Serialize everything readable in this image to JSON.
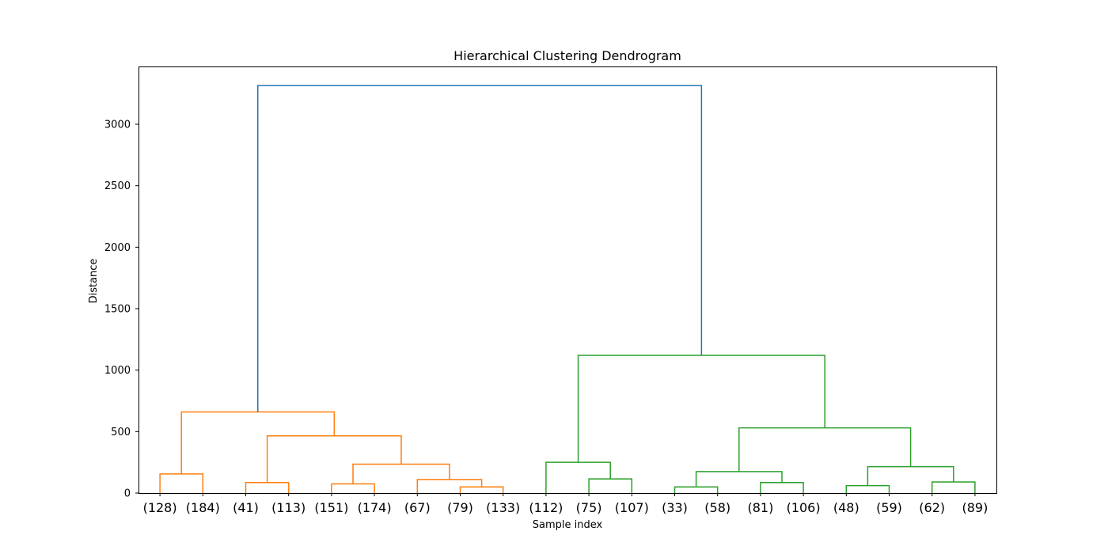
{
  "chart_data": {
    "type": "dendrogram",
    "title": "Hierarchical Clustering Dendrogram",
    "xlabel": "Sample index",
    "ylabel": "Distance",
    "ylim": [
      0,
      3470
    ],
    "yticks": [
      0,
      500,
      1000,
      1500,
      2000,
      2500,
      3000
    ],
    "grid": false,
    "leaves": [
      "(128)",
      "(184)",
      "(41)",
      "(113)",
      "(151)",
      "(174)",
      "(67)",
      "(79)",
      "(133)",
      "(112)",
      "(75)",
      "(107)",
      "(33)",
      "(58)",
      "(81)",
      "(106)",
      "(48)",
      "(59)",
      "(62)",
      "(89)"
    ],
    "colors": {
      "above_threshold": "#1f77b4",
      "cluster_1": "#ff7f0e",
      "cluster_2": "#2ca02c"
    },
    "links": [
      {
        "left": 0,
        "right": 1,
        "height": 155,
        "color": "cluster_1"
      },
      {
        "left": 2,
        "right": 3,
        "height": 85,
        "color": "cluster_1"
      },
      {
        "left": 4,
        "right": 5,
        "height": 75,
        "color": "cluster_1"
      },
      {
        "left": 7,
        "right": 8,
        "height": 50,
        "color": "cluster_1"
      },
      {
        "left": 6,
        "right": 23,
        "height": 110,
        "color": "cluster_1"
      },
      {
        "left": 22,
        "right": 24,
        "height": 235,
        "color": "cluster_1"
      },
      {
        "left": 21,
        "right": 25,
        "height": 465,
        "color": "cluster_1"
      },
      {
        "left": 20,
        "right": 26,
        "height": 660,
        "color": "cluster_1"
      },
      {
        "left": 10,
        "right": 11,
        "height": 115,
        "color": "cluster_2"
      },
      {
        "left": 9,
        "right": 28,
        "height": 250,
        "color": "cluster_2"
      },
      {
        "left": 12,
        "right": 13,
        "height": 50,
        "color": "cluster_2"
      },
      {
        "left": 14,
        "right": 15,
        "height": 85,
        "color": "cluster_2"
      },
      {
        "left": 30,
        "right": 31,
        "height": 175,
        "color": "cluster_2"
      },
      {
        "left": 16,
        "right": 17,
        "height": 60,
        "color": "cluster_2"
      },
      {
        "left": 18,
        "right": 19,
        "height": 90,
        "color": "cluster_2"
      },
      {
        "left": 33,
        "right": 34,
        "height": 215,
        "color": "cluster_2"
      },
      {
        "left": 32,
        "right": 35,
        "height": 530,
        "color": "cluster_2"
      },
      {
        "left": 29,
        "right": 36,
        "height": 1120,
        "color": "cluster_2"
      },
      {
        "left": 27,
        "right": 37,
        "height": 3315,
        "color": "above_threshold"
      }
    ]
  }
}
